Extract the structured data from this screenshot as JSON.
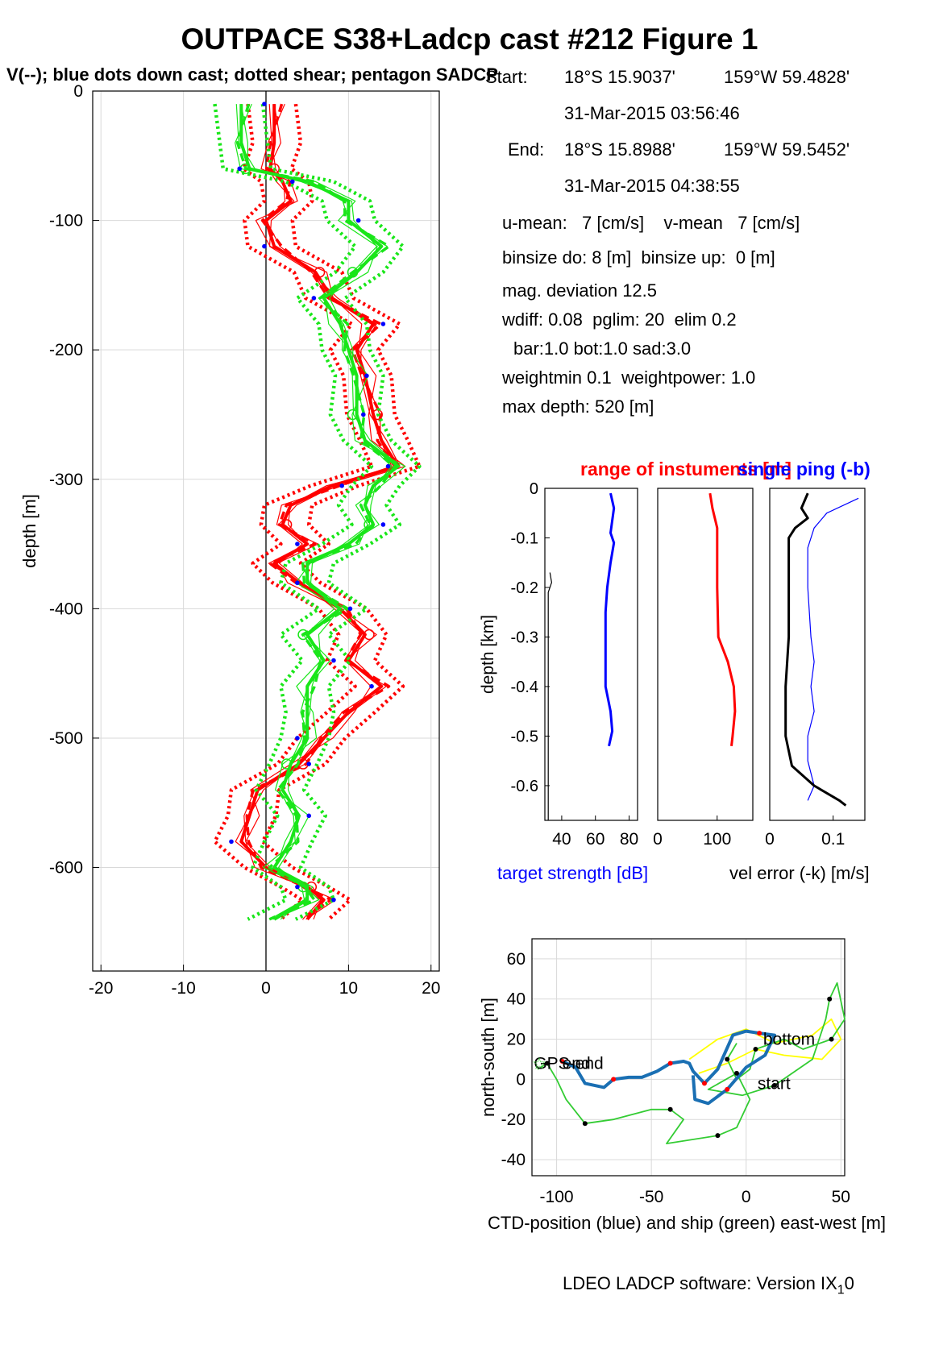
{
  "title": "OUTPACE S38+Ladcp cast #212  Figure 1",
  "subtitle": "V(--); blue dots down cast; dotted shear; pentagon SADCP",
  "info": {
    "start_label": "Start:",
    "start_lat": "18°S 15.9037'",
    "start_lon": "159°W 59.4828'",
    "start_time": "31-Mar-2015 03:56:46",
    "end_label": "End:",
    "end_lat": "18°S 15.8988'",
    "end_lon": "159°W 59.5452'",
    "end_time": "31-Mar-2015 04:38:55",
    "means": "u-mean:   7 [cm/s]    v-mean   7 [cm/s]",
    "binsize": "binsize do: 8 [m]  binsize up:  0 [m]",
    "magdev": "mag. deviation 12.5",
    "wdiff": "wdiff: 0.08  pglim: 20  elim 0.2",
    "bar": "bar:1.0 bot:1.0 sad:3.0",
    "weight": "weightmin 0.1  weightpower: 1.0",
    "maxdepth": "max depth: 520 [m]"
  },
  "footer": "LDEO LADCP software: Version IX",
  "footer_sub": "1",
  "footer_tail": "0",
  "colors": {
    "red": "#ff0000",
    "green": "#19e619",
    "blue": "#0000ff",
    "ctd": "#1a6fb3",
    "ship": "#33cc33",
    "yellow": "#ffff00"
  },
  "chart_data": [
    {
      "type": "line",
      "ylabel": "depth [m]",
      "xlim": [
        -21,
        21
      ],
      "ylim": [
        -680,
        0
      ],
      "xticks": [
        -20,
        -10,
        0,
        10,
        20
      ],
      "yticks": [
        0,
        -100,
        -200,
        -300,
        -400,
        -500,
        -600
      ],
      "depth": [
        -10,
        -40,
        -60,
        -70,
        -85,
        -100,
        -120,
        -140,
        -160,
        -180,
        -200,
        -220,
        -250,
        -270,
        -290,
        -305,
        -320,
        -335,
        -350,
        -365,
        -380,
        -400,
        -420,
        -440,
        -460,
        -480,
        -500,
        -520,
        -540,
        -560,
        -580,
        -600,
        -615,
        -625,
        -640
      ],
      "series": [
        {
          "name": "u",
          "color": "red",
          "values": [
            1,
            1,
            0.5,
            2,
            3,
            0,
            1,
            6,
            8,
            13,
            11,
            12,
            13,
            14,
            16,
            8,
            3,
            2,
            5,
            1,
            4,
            9,
            12,
            10,
            14,
            10,
            7,
            4,
            -1,
            -2,
            -3,
            0,
            5,
            7,
            5
          ]
        },
        {
          "name": "v",
          "color": "green",
          "values": [
            -3,
            -3,
            -2,
            5,
            10,
            10,
            14,
            11,
            7,
            9,
            10,
            11,
            11,
            12,
            16,
            13,
            12,
            13,
            10,
            5,
            5,
            9,
            5,
            7,
            5,
            5,
            5,
            3,
            2,
            4,
            3,
            1,
            5,
            5,
            1
          ]
        }
      ]
    },
    {
      "type": "line",
      "title": "range of instuments [m]",
      "xlabel": "target strength [dB]",
      "ylabel": "depth [km]",
      "ylim": [
        -0.67,
        0
      ],
      "yticks": [
        0,
        -0.1,
        -0.2,
        -0.3,
        -0.4,
        -0.5,
        -0.6
      ],
      "panels": [
        {
          "xlim": [
            30,
            85
          ],
          "xticks": [
            40,
            60,
            80
          ],
          "series": [
            {
              "name": "target strength",
              "color": "blue",
              "depth": [
                -0.01,
                -0.04,
                -0.09,
                -0.11,
                -0.15,
                -0.2,
                -0.25,
                -0.3,
                -0.35,
                -0.4,
                -0.45,
                -0.49,
                -0.52
              ],
              "values": [
                69,
                71,
                69,
                71,
                69,
                67,
                66,
                66,
                66,
                66,
                69,
                70,
                68
              ]
            },
            {
              "color": "black",
              "depth": [
                -0.17,
                -0.19,
                -0.21,
                -0.3,
                -0.4,
                -0.5,
                -0.6,
                -0.67
              ],
              "values": [
                33,
                34,
                32,
                32,
                32,
                32,
                32,
                32
              ]
            }
          ]
        },
        {
          "xlim": [
            0,
            160
          ],
          "xticks": [
            0,
            100
          ],
          "series": [
            {
              "name": "range",
              "color": "red",
              "depth": [
                -0.01,
                -0.04,
                -0.08,
                -0.12,
                -0.2,
                -0.3,
                -0.35,
                -0.4,
                -0.45,
                -0.5,
                -0.52
              ],
              "values": [
                88,
                92,
                100,
                100,
                100,
                102,
                118,
                128,
                130,
                126,
                124
              ]
            }
          ]
        }
      ]
    },
    {
      "type": "line",
      "title": "single ping (-b)",
      "xlabel": "vel error (-k) [m/s]",
      "xlim": [
        0,
        0.15
      ],
      "xticks": [
        0,
        0.1
      ],
      "ylim": [
        -0.67,
        0
      ],
      "series": [
        {
          "name": "single ping",
          "color": "blue",
          "depth": [
            -0.02,
            -0.05,
            -0.08,
            -0.12,
            -0.2,
            -0.3,
            -0.35,
            -0.4,
            -0.45,
            -0.5,
            -0.55,
            -0.6,
            -0.63
          ],
          "values": [
            0.14,
            0.09,
            0.07,
            0.06,
            0.06,
            0.065,
            0.07,
            0.065,
            0.07,
            0.06,
            0.06,
            0.07,
            0.06
          ]
        },
        {
          "name": "vel error",
          "color": "black",
          "depth": [
            -0.01,
            -0.04,
            -0.06,
            -0.08,
            -0.1,
            -0.2,
            -0.3,
            -0.4,
            -0.5,
            -0.56,
            -0.6,
            -0.63,
            -0.64
          ],
          "values": [
            0.06,
            0.05,
            0.06,
            0.04,
            0.03,
            0.03,
            0.03,
            0.025,
            0.025,
            0.035,
            0.07,
            0.11,
            0.12
          ]
        }
      ]
    },
    {
      "type": "line",
      "xlabel": "CTD-position (blue) and ship (green) east-west [m]",
      "ylabel": "north-south [m]",
      "xlim": [
        -113,
        52
      ],
      "ylim": [
        -48,
        70
      ],
      "xticks": [
        -100,
        -50,
        0,
        50
      ],
      "yticks": [
        60,
        40,
        20,
        0,
        -20,
        -40
      ],
      "annotations": [
        "GPS-end",
        "end",
        "bottom",
        "start"
      ],
      "series": [
        {
          "name": "CTD-position",
          "color": "ctd",
          "x": [
            -97,
            -90,
            -85,
            -75,
            -70,
            -62,
            -55,
            -47,
            -40,
            -33,
            -30,
            -28,
            -22,
            -15,
            -7,
            0,
            7,
            15,
            10,
            0,
            -10,
            -20,
            -27,
            -28
          ],
          "y": [
            9,
            6,
            -2,
            -4,
            0,
            1,
            1,
            4,
            8,
            9,
            8,
            4,
            -2,
            5,
            22,
            24,
            23,
            22,
            12,
            6,
            -5,
            -12,
            -10,
            2
          ]
        },
        {
          "name": "ship",
          "color": "ship",
          "x": [
            -110,
            -105,
            -100,
            -95,
            -85,
            -70,
            -50,
            -40,
            -33,
            -42,
            -15,
            -5,
            2,
            -5,
            -20,
            -2,
            15,
            35,
            42,
            44,
            48,
            52,
            45,
            30,
            20,
            5,
            2,
            -5,
            -10,
            -5
          ],
          "y": [
            5,
            8,
            0,
            -10,
            -22,
            -20,
            -15,
            -15,
            -20,
            -32,
            -28,
            -24,
            -10,
            3,
            -5,
            -8,
            -3,
            10,
            30,
            40,
            48,
            30,
            20,
            15,
            20,
            15,
            5,
            0,
            10,
            18
          ]
        },
        {
          "name": "",
          "color": "yellow",
          "x": [
            -30,
            -15,
            0,
            15,
            35,
            45,
            50,
            40,
            20,
            5,
            -10,
            -25
          ],
          "y": [
            10,
            20,
            25,
            18,
            22,
            30,
            20,
            10,
            12,
            15,
            8,
            3
          ]
        }
      ]
    }
  ]
}
